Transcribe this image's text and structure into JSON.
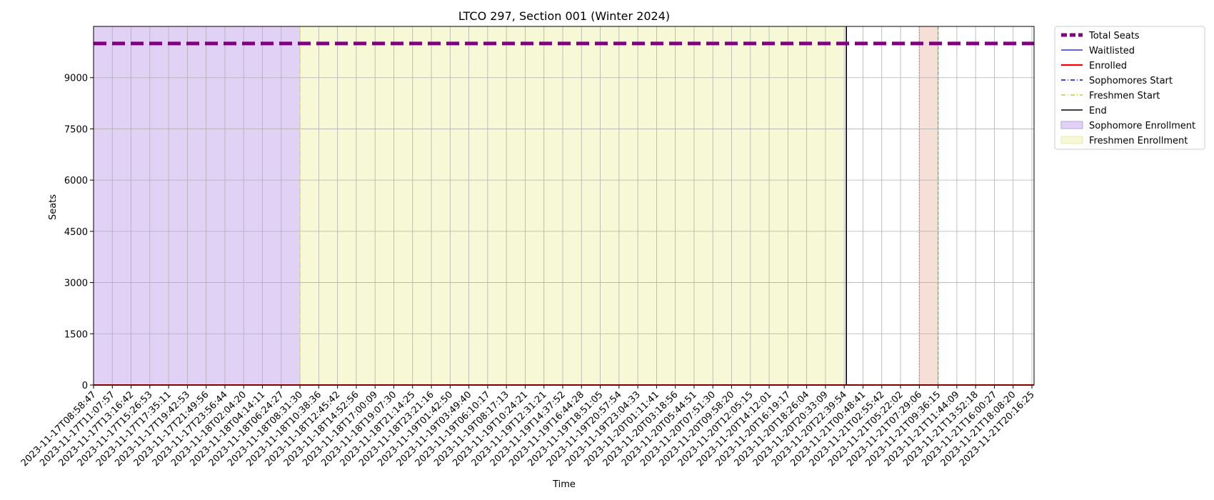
{
  "chart_data": {
    "type": "line",
    "title": "LTCO 297, Section 001 (Winter 2024)",
    "xlabel": "Time",
    "ylabel": "Seats",
    "ylim": [
      0,
      10500
    ],
    "yticks": [
      0,
      1500,
      3000,
      4500,
      6000,
      7500,
      9000
    ],
    "ytick_labels": [
      "0",
      "1500",
      "3000",
      "4500",
      "6000",
      "7500",
      "9000"
    ],
    "grid": true,
    "legend_position": "outside-top-right",
    "x_categories": [
      "2023-11-17T08:58:47",
      "2023-11-17T11:07:57",
      "2023-11-17T13:16:42",
      "2023-11-17T15:26:53",
      "2023-11-17T17:35:11",
      "2023-11-17T19:42:53",
      "2023-11-17T21:49:56",
      "2023-11-17T23:56:44",
      "2023-11-18T02:04:20",
      "2023-11-18T04:14:11",
      "2023-11-18T06:24:27",
      "2023-11-18T08:31:30",
      "2023-11-18T10:38:36",
      "2023-11-18T12:45:42",
      "2023-11-18T14:52:56",
      "2023-11-18T17:00:09",
      "2023-11-18T19:07:30",
      "2023-11-18T21:14:25",
      "2023-11-18T23:21:16",
      "2023-11-19T01:42:50",
      "2023-11-19T03:49:40",
      "2023-11-19T06:10:17",
      "2023-11-19T08:17:13",
      "2023-11-19T10:24:21",
      "2023-11-19T12:31:21",
      "2023-11-19T14:37:52",
      "2023-11-19T16:44:28",
      "2023-11-19T18:51:05",
      "2023-11-19T20:57:54",
      "2023-11-19T23:04:33",
      "2023-11-20T01:11:41",
      "2023-11-20T03:18:56",
      "2023-11-20T05:44:51",
      "2023-11-20T07:51:30",
      "2023-11-20T09:58:20",
      "2023-11-20T12:05:15",
      "2023-11-20T14:12:01",
      "2023-11-20T16:19:17",
      "2023-11-20T18:26:04",
      "2023-11-20T20:33:09",
      "2023-11-20T22:39:54",
      "2023-11-21T00:48:41",
      "2023-11-21T02:55:42",
      "2023-11-21T05:22:02",
      "2023-11-21T07:29:06",
      "2023-11-21T09:36:15",
      "2023-11-21T11:44:09",
      "2023-11-21T13:52:18",
      "2023-11-21T16:00:27",
      "2023-11-21T18:08:20",
      "2023-11-21T20:16:25"
    ],
    "series": [
      {
        "name": "Total Seats",
        "style": "dashed-thick",
        "color": "#800080",
        "value": 10000
      },
      {
        "name": "Waitlisted",
        "style": "solid",
        "color": "#0000ff",
        "value": 0
      },
      {
        "name": "Enrolled",
        "style": "solid",
        "color": "#ff0000",
        "value": 0
      }
    ],
    "markers": [
      {
        "name": "Sophomores Start",
        "style": "dash-dot",
        "color": "#0000ff"
      },
      {
        "name": "Freshmen Start",
        "style": "dash-dot",
        "color": "#bcbd22",
        "at": "2023-11-18T08:31:30"
      },
      {
        "name": "End",
        "style": "solid",
        "color": "#000000",
        "at": "2023-11-20T22:39:54"
      }
    ],
    "regions": [
      {
        "name": "Sophomore Enrollment",
        "color": "#9467bd",
        "from": "2023-11-17T08:58:47",
        "to": "2023-11-18T08:31:30"
      },
      {
        "name": "Freshmen Enrollment",
        "color": "#e6e69a",
        "from": "2023-11-18T08:31:30",
        "to": "2023-11-20T22:39:54"
      }
    ],
    "unlabeled_band": {
      "color": "#f4cbbb",
      "from": "2023-11-21T07:29:06",
      "to": "2023-11-21T09:36:15"
    },
    "legend": [
      {
        "label": "Total Seats",
        "kind": "line",
        "color": "#800080",
        "dash": "8,4",
        "width": 5
      },
      {
        "label": "Waitlisted",
        "kind": "line",
        "color": "#0000ff",
        "dash": "",
        "width": 1.3
      },
      {
        "label": "Enrolled",
        "kind": "line",
        "color": "#ff0000",
        "dash": "",
        "width": 2.2
      },
      {
        "label": "Sophomores Start",
        "kind": "line",
        "color": "#0000ff",
        "dash": "6,3,1,3",
        "width": 1.6
      },
      {
        "label": "Freshmen Start",
        "kind": "line",
        "color": "#bcbd22",
        "dash": "6,3,1,3",
        "width": 1.2
      },
      {
        "label": "End",
        "kind": "line",
        "color": "#000000",
        "dash": "",
        "width": 1.6
      },
      {
        "label": "Sophomore Enrollment",
        "kind": "patch",
        "color": "#e1d1f5",
        "border": "#b9a3dc"
      },
      {
        "label": "Freshmen Enrollment",
        "kind": "patch",
        "color": "#f7f8d6",
        "border": "#e9eab6"
      }
    ]
  }
}
